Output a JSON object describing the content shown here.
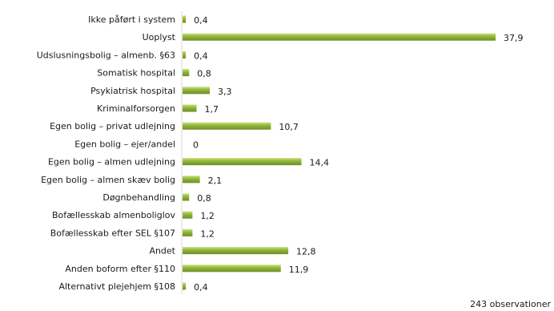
{
  "chart_data": {
    "type": "bar",
    "orientation": "horizontal",
    "categories": [
      "Ikke påført i system",
      "Uoplyst",
      "Udslusningsbolig – almenb. §63",
      "Somatisk hospital",
      "Psykiatrisk hospital",
      "Kriminalforsorgen",
      "Egen bolig – privat udlejning",
      "Egen bolig – ejer/andel",
      "Egen bolig – almen udlejning",
      "Egen bolig – almen skæv bolig",
      "Døgnbehandling",
      "Bofællesskab almenboliglov",
      "Bofællesskab efter SEL §107",
      "Andet",
      "Anden boform efter §110",
      "Alternativt plejehjem §108"
    ],
    "values": [
      0.4,
      37.9,
      0.4,
      0.8,
      3.3,
      1.7,
      10.7,
      0,
      14.4,
      2.1,
      0.8,
      1.2,
      1.2,
      12.8,
      11.9,
      0.4
    ],
    "value_labels": [
      "0,4",
      "37,9",
      "0,4",
      "0,8",
      "3,3",
      "1,7",
      "10,7",
      "0",
      "14,4",
      "2,1",
      "0,8",
      "1,2",
      "1,2",
      "12,8",
      "11,9",
      "0,4"
    ],
    "xlim": [
      0,
      37.9
    ],
    "grid": false,
    "legend": "none",
    "bar_color": "#8fb43a",
    "bar_highlight": "#c9e07a",
    "bar_shadow": "#6f8e26"
  },
  "note": "243 observationer"
}
